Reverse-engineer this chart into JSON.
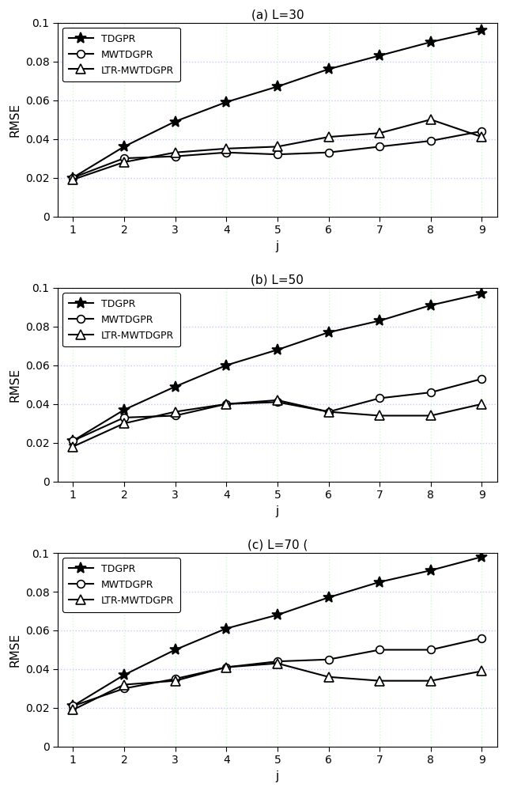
{
  "x": [
    1,
    2,
    3,
    4,
    5,
    6,
    7,
    8,
    9
  ],
  "panels": [
    {
      "title": "(a) L=30",
      "TDGPR": [
        0.02,
        0.036,
        0.049,
        0.059,
        0.067,
        0.076,
        0.083,
        0.09,
        0.096
      ],
      "MWTDGPR": [
        0.02,
        0.03,
        0.031,
        0.033,
        0.032,
        0.033,
        0.036,
        0.039,
        0.044
      ],
      "LTR-MWTDGPR": [
        0.019,
        0.028,
        0.033,
        0.035,
        0.036,
        0.041,
        0.043,
        0.05,
        0.041
      ]
    },
    {
      "title": "(b) L=50",
      "TDGPR": [
        0.021,
        0.037,
        0.049,
        0.06,
        0.068,
        0.077,
        0.083,
        0.091,
        0.097
      ],
      "MWTDGPR": [
        0.021,
        0.033,
        0.034,
        0.04,
        0.041,
        0.036,
        0.043,
        0.046,
        0.053
      ],
      "LTR-MWTDGPR": [
        0.018,
        0.03,
        0.036,
        0.04,
        0.042,
        0.036,
        0.034,
        0.034,
        0.04
      ]
    },
    {
      "title": "(c) L=70 (",
      "TDGPR": [
        0.021,
        0.037,
        0.05,
        0.061,
        0.068,
        0.077,
        0.085,
        0.091,
        0.098
      ],
      "MWTDGPR": [
        0.021,
        0.03,
        0.035,
        0.041,
        0.044,
        0.045,
        0.05,
        0.05,
        0.056
      ],
      "LTR-MWTDGPR": [
        0.019,
        0.032,
        0.034,
        0.041,
        0.043,
        0.036,
        0.034,
        0.034,
        0.039
      ]
    }
  ],
  "ylim": [
    0,
    0.1
  ],
  "yticks": [
    0,
    0.02,
    0.04,
    0.06,
    0.08,
    0.1
  ],
  "ytick_labels": [
    "0",
    "0.02",
    "0.04",
    "0.06",
    "0.08",
    "0.1"
  ],
  "xlabel": "j",
  "ylabel": "RMSE",
  "line_color": "black",
  "bg_color": "#ffffff",
  "grid_color_h": "#c8c8ff",
  "grid_color_v": "#c8ffc8",
  "legend_labels": [
    "TDGPR",
    "MWTDGPR",
    "LTR-MWTDGPR"
  ],
  "markers": [
    "*",
    "o",
    "^"
  ],
  "markersizes": [
    10,
    7,
    8
  ],
  "markerfilled": [
    true,
    false,
    false
  ]
}
